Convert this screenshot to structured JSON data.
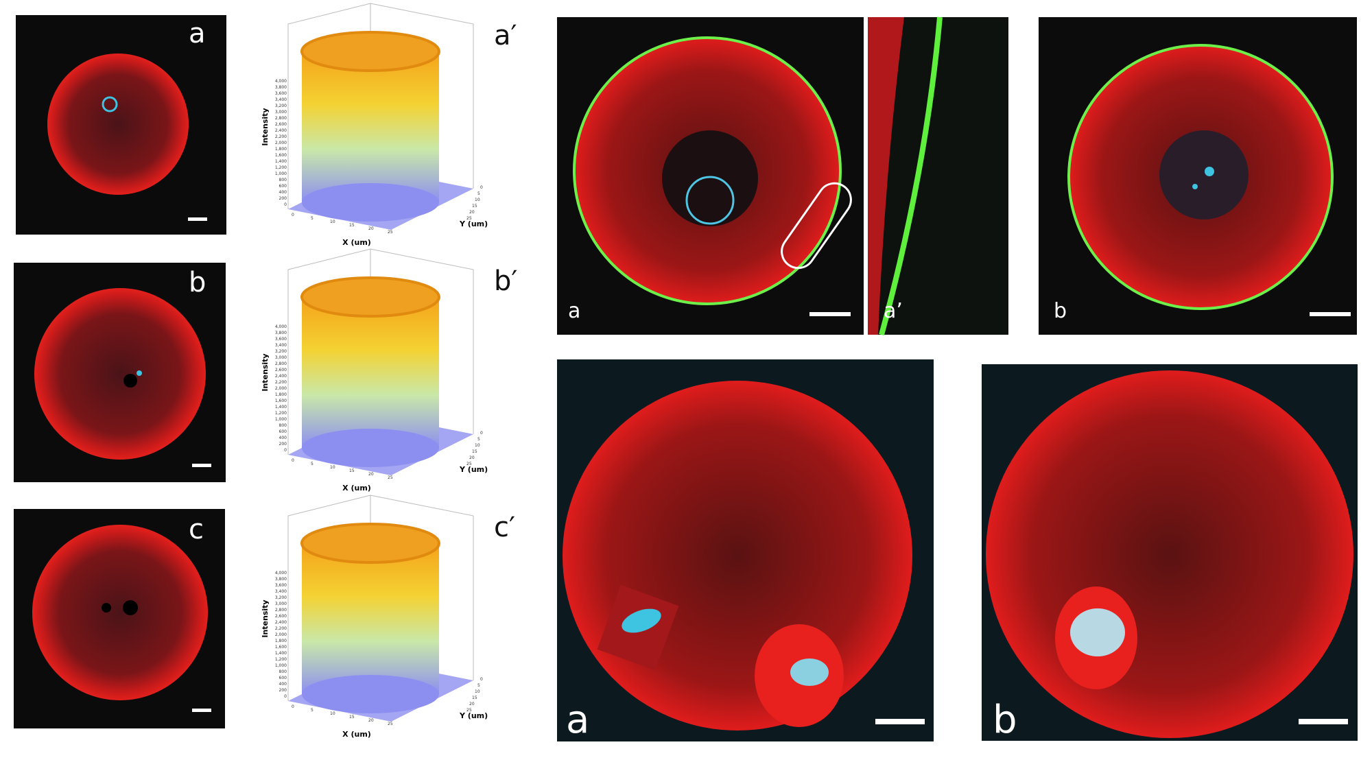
{
  "left_images": [
    {
      "label": "a"
    },
    {
      "label": "b"
    },
    {
      "label": "c"
    }
  ],
  "intensity_plots": [
    {
      "label": "a′",
      "y_axis_title": "Intensity",
      "x_axis_title": "X (um)",
      "z_axis_title": "Y (um)"
    },
    {
      "label": "b′",
      "y_axis_title": "Intensity",
      "x_axis_title": "X (um)",
      "z_axis_title": "Y (um)"
    },
    {
      "label": "c′",
      "y_axis_title": "Intensity",
      "x_axis_title": "X (um)",
      "z_axis_title": "Y (um)"
    }
  ],
  "plot_ticks": {
    "intensity": [
      "0",
      "200",
      "400",
      "600",
      "800",
      "1,000",
      "1,200",
      "1,400",
      "1,600",
      "1,800",
      "2,000",
      "2,200",
      "2,400",
      "2,600",
      "2,800",
      "3,000",
      "3,200",
      "3,400",
      "3,600",
      "3,800",
      "4,000"
    ],
    "x": [
      "0",
      "5",
      "10",
      "15",
      "20",
      "25"
    ],
    "y": [
      "0",
      "5",
      "10",
      "15",
      "20",
      "25"
    ]
  },
  "top_right_images": [
    {
      "label": "a"
    },
    {
      "label": "a’"
    },
    {
      "label": "b"
    }
  ],
  "bottom_right_images": [
    {
      "label": "a"
    },
    {
      "label": "b"
    }
  ]
}
